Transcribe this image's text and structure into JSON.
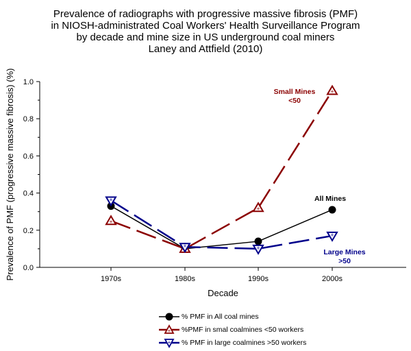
{
  "title_lines": [
    "Prevalence of radiographs with progressive massive fibrosis (PMF)",
    "in NIOSH-administrated Coal Workers' Health Surveillance Program",
    "by decade and mine size in US underground coal miners",
    "Laney and Attfield (2010)"
  ],
  "colors": {
    "all": "#000000",
    "small": "#8b0000",
    "large": "#00008b"
  },
  "chart_data": {
    "type": "line",
    "xlabel": "Decade",
    "ylabel": "Prevalence of PMF (progressive massive fibrosis) (%)",
    "categories": [
      "1970s",
      "1980s",
      "1990s",
      "2000s"
    ],
    "ylim": [
      0,
      1.0
    ],
    "yticks": [
      "0.0",
      "0.2",
      "0.4",
      "0.6",
      "0.8",
      "1.0"
    ],
    "series": [
      {
        "key": "all",
        "name": "% PMF in All coal mines",
        "values": [
          0.33,
          0.1,
          0.14,
          0.31
        ],
        "marker": "circle",
        "dash": "solid"
      },
      {
        "key": "small",
        "name": "%PMF in smal coalmines <50 workers",
        "values": [
          0.25,
          0.1,
          0.32,
          0.95
        ],
        "marker": "triangle-up",
        "dash": "long-dash"
      },
      {
        "key": "large",
        "name": "% PMF in large coalmines >50 workers",
        "values": [
          0.36,
          0.11,
          0.1,
          0.17
        ],
        "marker": "triangle-down",
        "dash": "long-dash"
      }
    ],
    "annotations": [
      {
        "key": "small",
        "lines": [
          "Small Mines",
          "<50"
        ]
      },
      {
        "key": "all",
        "lines": [
          "All Mines"
        ]
      },
      {
        "key": "large",
        "lines": [
          "Large Mines",
          ">50"
        ]
      }
    ]
  }
}
